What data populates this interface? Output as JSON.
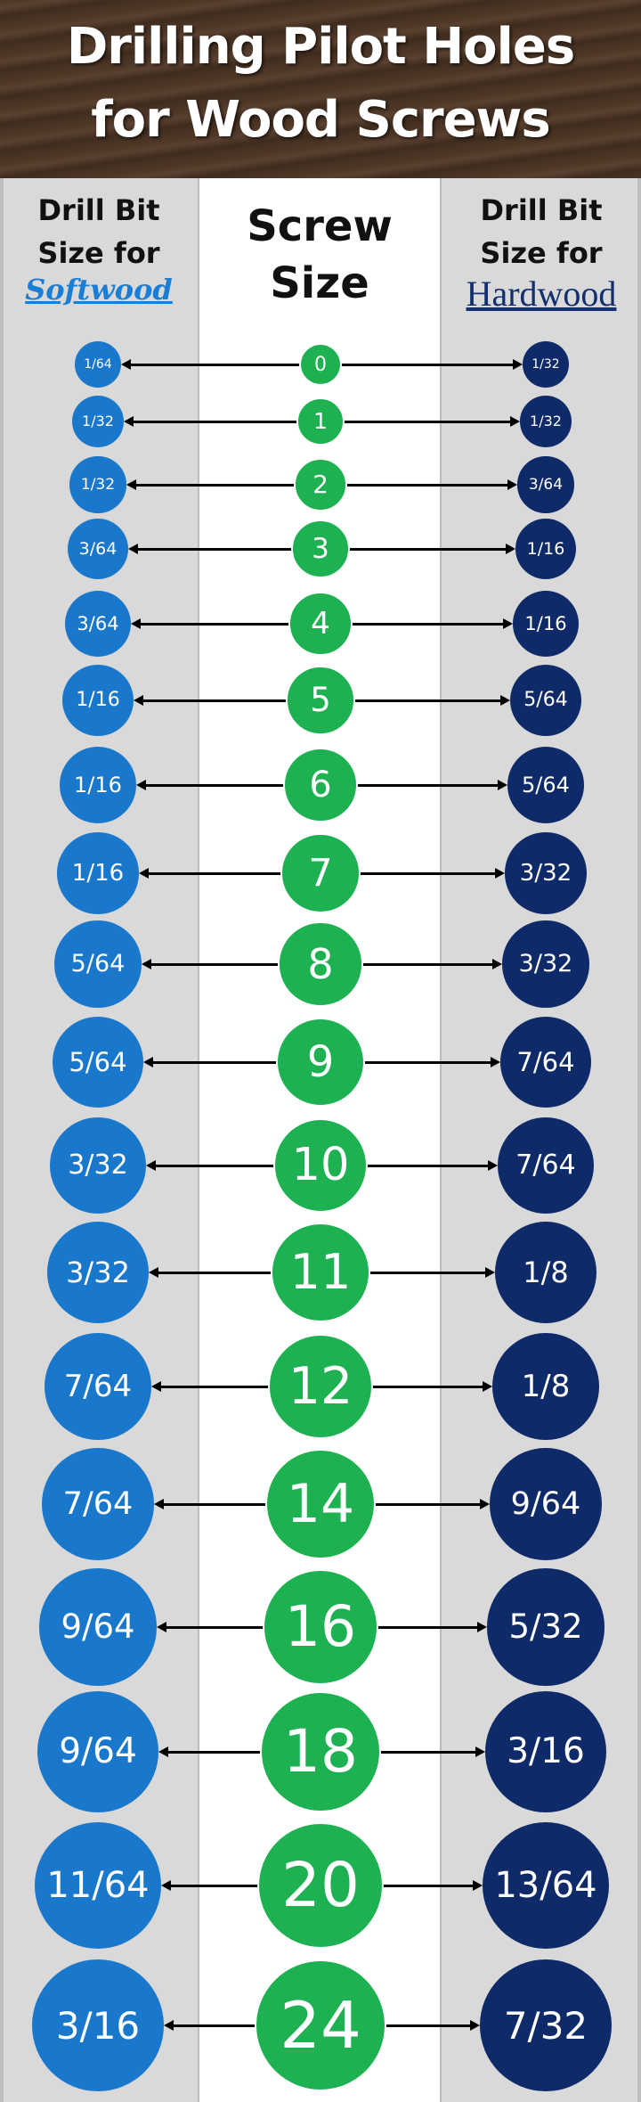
{
  "title": {
    "line1": "Drilling Pilot Holes",
    "line2": "for Wood Screws"
  },
  "headers": {
    "left_line1": "Drill Bit",
    "left_line2": "Size for",
    "left_wood": "Softwood",
    "center_line1": "Screw",
    "center_line2": "Size",
    "right_line1": "Drill Bit",
    "right_line2": "Size for",
    "right_wood": "Hardwood"
  },
  "colors": {
    "softwood": "#1a78cc",
    "hardwood": "#0e2a68",
    "screw": "#1db152",
    "header_wood": "#4a3424"
  },
  "rows": [
    {
      "softwood": "1/64",
      "screw": "0",
      "hardwood": "1/32"
    },
    {
      "softwood": "1/32",
      "screw": "1",
      "hardwood": "1/32"
    },
    {
      "softwood": "1/32",
      "screw": "2",
      "hardwood": "3/64"
    },
    {
      "softwood": "3/64",
      "screw": "3",
      "hardwood": "1/16"
    },
    {
      "softwood": "3/64",
      "screw": "4",
      "hardwood": "1/16"
    },
    {
      "softwood": "1/16",
      "screw": "5",
      "hardwood": "5/64"
    },
    {
      "softwood": "1/16",
      "screw": "6",
      "hardwood": "5/64"
    },
    {
      "softwood": "1/16",
      "screw": "7",
      "hardwood": "3/32"
    },
    {
      "softwood": "5/64",
      "screw": "8",
      "hardwood": "3/32"
    },
    {
      "softwood": "5/64",
      "screw": "9",
      "hardwood": "7/64"
    },
    {
      "softwood": "3/32",
      "screw": "10",
      "hardwood": "7/64"
    },
    {
      "softwood": "3/32",
      "screw": "11",
      "hardwood": "1/8"
    },
    {
      "softwood": "7/64",
      "screw": "12",
      "hardwood": "1/8"
    },
    {
      "softwood": "7/64",
      "screw": "14",
      "hardwood": "9/64"
    },
    {
      "softwood": "9/64",
      "screw": "16",
      "hardwood": "5/32"
    },
    {
      "softwood": "9/64",
      "screw": "18",
      "hardwood": "3/16"
    },
    {
      "softwood": "11/64",
      "screw": "20",
      "hardwood": "13/64"
    },
    {
      "softwood": "3/16",
      "screw": "24",
      "hardwood": "7/32"
    }
  ]
}
